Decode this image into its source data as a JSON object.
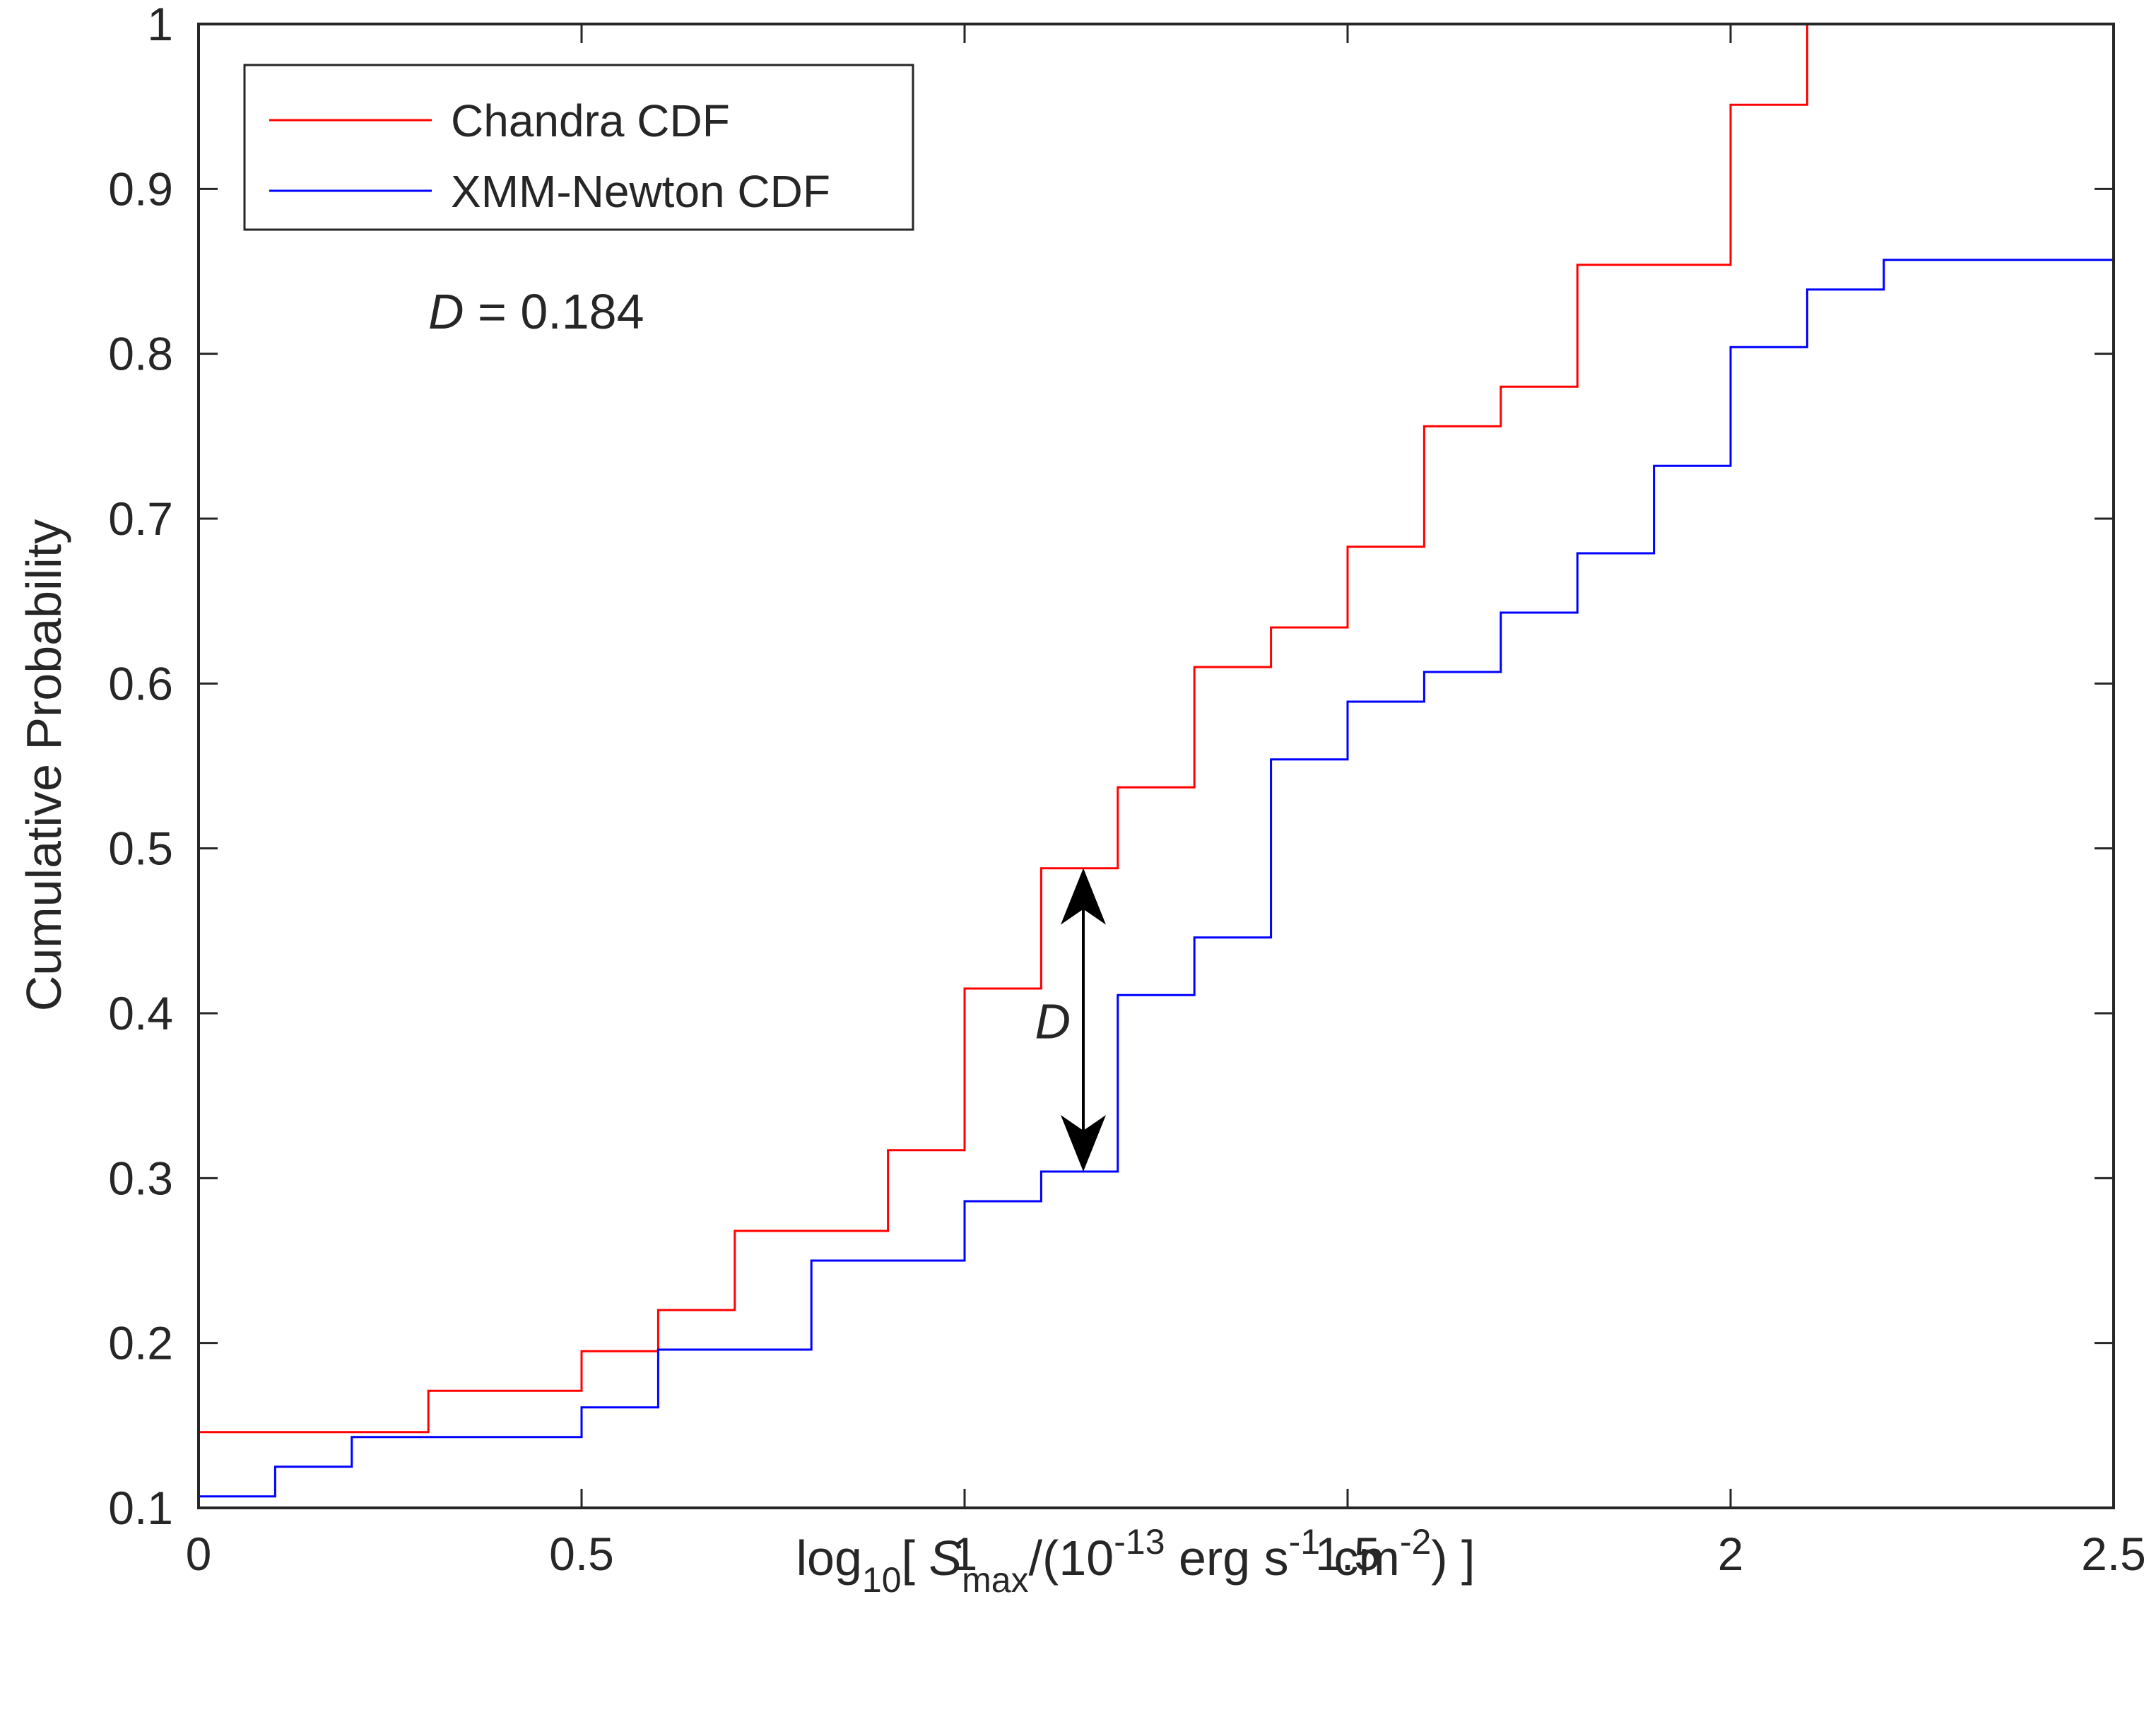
{
  "chart_data": {
    "type": "line",
    "step": true,
    "xlabel": {
      "prefix": "log",
      "prefix_sub": "10",
      "open": "[ ",
      "var": "S",
      "var_sub": "max",
      "mid": "/(10",
      "exp1": "-13",
      "unit1": " erg s",
      "exp2": "-1",
      "unit2": " cm",
      "exp3": "-2",
      "close": ") ]"
    },
    "ylabel": "Cumulative Probability",
    "xlim": [
      0,
      2.5
    ],
    "ylim": [
      0.1,
      1
    ],
    "xticks": [
      0,
      0.5,
      1,
      1.5,
      2,
      2.5
    ],
    "xtick_labels": [
      "0",
      "0.5",
      "1",
      "1.5",
      "2",
      "2.5"
    ],
    "yticks": [
      0.1,
      0.2,
      0.3,
      0.4,
      0.5,
      0.6,
      0.7,
      0.8,
      0.9,
      1
    ],
    "ytick_labels": [
      "0.1",
      "0.2",
      "0.3",
      "0.4",
      "0.5",
      "0.6",
      "0.7",
      "0.8",
      "0.9",
      "1"
    ],
    "grid": false,
    "legend_position": "top-left",
    "series": [
      {
        "name": "Chandra CDF",
        "color": "#ff0000",
        "x": [
          0,
          0.3,
          0.5,
          0.6,
          0.7,
          0.9,
          1.0,
          1.1,
          1.2,
          1.3,
          1.4,
          1.5,
          1.6,
          1.7,
          1.8,
          2.0,
          2.1,
          2.5
        ],
        "y": [
          0.146,
          0.171,
          0.195,
          0.22,
          0.268,
          0.317,
          0.415,
          0.488,
          0.537,
          0.61,
          0.634,
          0.683,
          0.756,
          0.78,
          0.854,
          0.951,
          1.0,
          1.0
        ]
      },
      {
        "name": "XMM-Newton CDF",
        "color": "#0000ff",
        "x": [
          0,
          0.1,
          0.2,
          0.5,
          0.6,
          0.8,
          1.0,
          1.1,
          1.2,
          1.3,
          1.4,
          1.5,
          1.6,
          1.7,
          1.8,
          1.9,
          2.0,
          2.1,
          2.2,
          2.5
        ],
        "y": [
          0.107,
          0.125,
          0.143,
          0.161,
          0.196,
          0.25,
          0.286,
          0.304,
          0.411,
          0.446,
          0.554,
          0.589,
          0.607,
          0.643,
          0.679,
          0.732,
          0.804,
          0.839,
          0.857,
          0.857
        ]
      }
    ],
    "annotations": {
      "stat_text": {
        "var": "D",
        "rest": " = 0.184",
        "x": 0.3,
        "y": 0.82
      },
      "arrow": {
        "x": 1.155,
        "y_top": 0.488,
        "y_bottom": 0.304,
        "label": "D"
      }
    }
  }
}
